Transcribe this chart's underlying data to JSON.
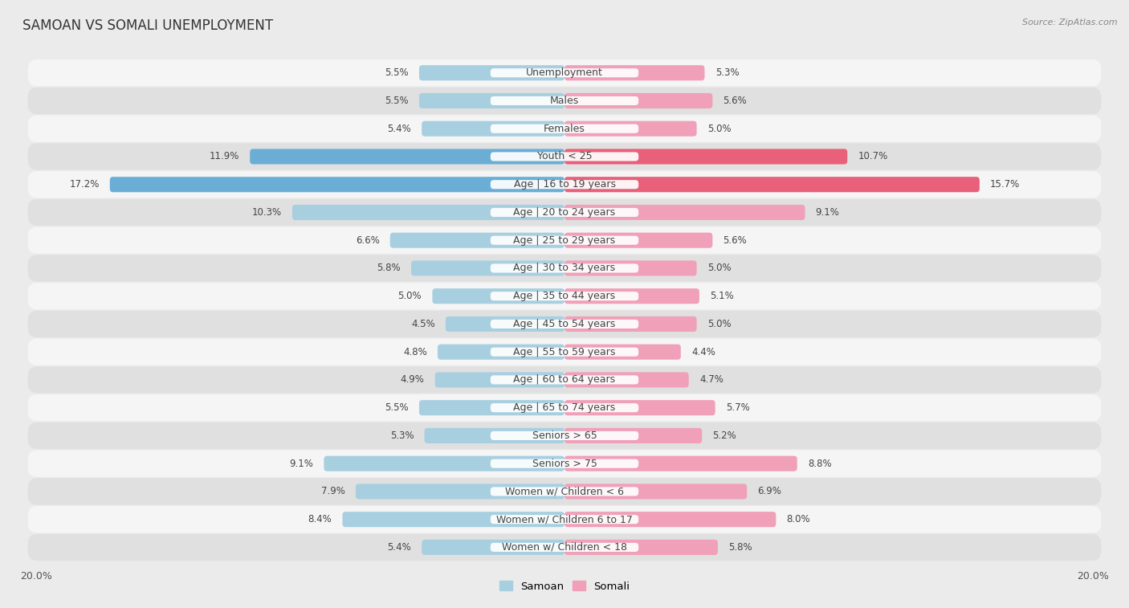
{
  "title": "SAMOAN VS SOMALI UNEMPLOYMENT",
  "source": "Source: ZipAtlas.com",
  "categories": [
    "Unemployment",
    "Males",
    "Females",
    "Youth < 25",
    "Age | 16 to 19 years",
    "Age | 20 to 24 years",
    "Age | 25 to 29 years",
    "Age | 30 to 34 years",
    "Age | 35 to 44 years",
    "Age | 45 to 54 years",
    "Age | 55 to 59 years",
    "Age | 60 to 64 years",
    "Age | 65 to 74 years",
    "Seniors > 65",
    "Seniors > 75",
    "Women w/ Children < 6",
    "Women w/ Children 6 to 17",
    "Women w/ Children < 18"
  ],
  "samoan": [
    5.5,
    5.5,
    5.4,
    11.9,
    17.2,
    10.3,
    6.6,
    5.8,
    5.0,
    4.5,
    4.8,
    4.9,
    5.5,
    5.3,
    9.1,
    7.9,
    8.4,
    5.4
  ],
  "somali": [
    5.3,
    5.6,
    5.0,
    10.7,
    15.7,
    9.1,
    5.6,
    5.0,
    5.1,
    5.0,
    4.4,
    4.7,
    5.7,
    5.2,
    8.8,
    6.9,
    8.0,
    5.8
  ],
  "samoan_color": "#a8cfe0",
  "somali_color": "#f0a0b8",
  "samoan_highlight": "#6aaed6",
  "somali_highlight": "#e8607a",
  "xlim": 20.0,
  "bg_color": "#ebebeb",
  "row_bg_light": "#f5f5f5",
  "row_bg_dark": "#e0e0e0",
  "label_fontsize": 9,
  "title_fontsize": 12,
  "value_fontsize": 8.5,
  "source_fontsize": 8
}
